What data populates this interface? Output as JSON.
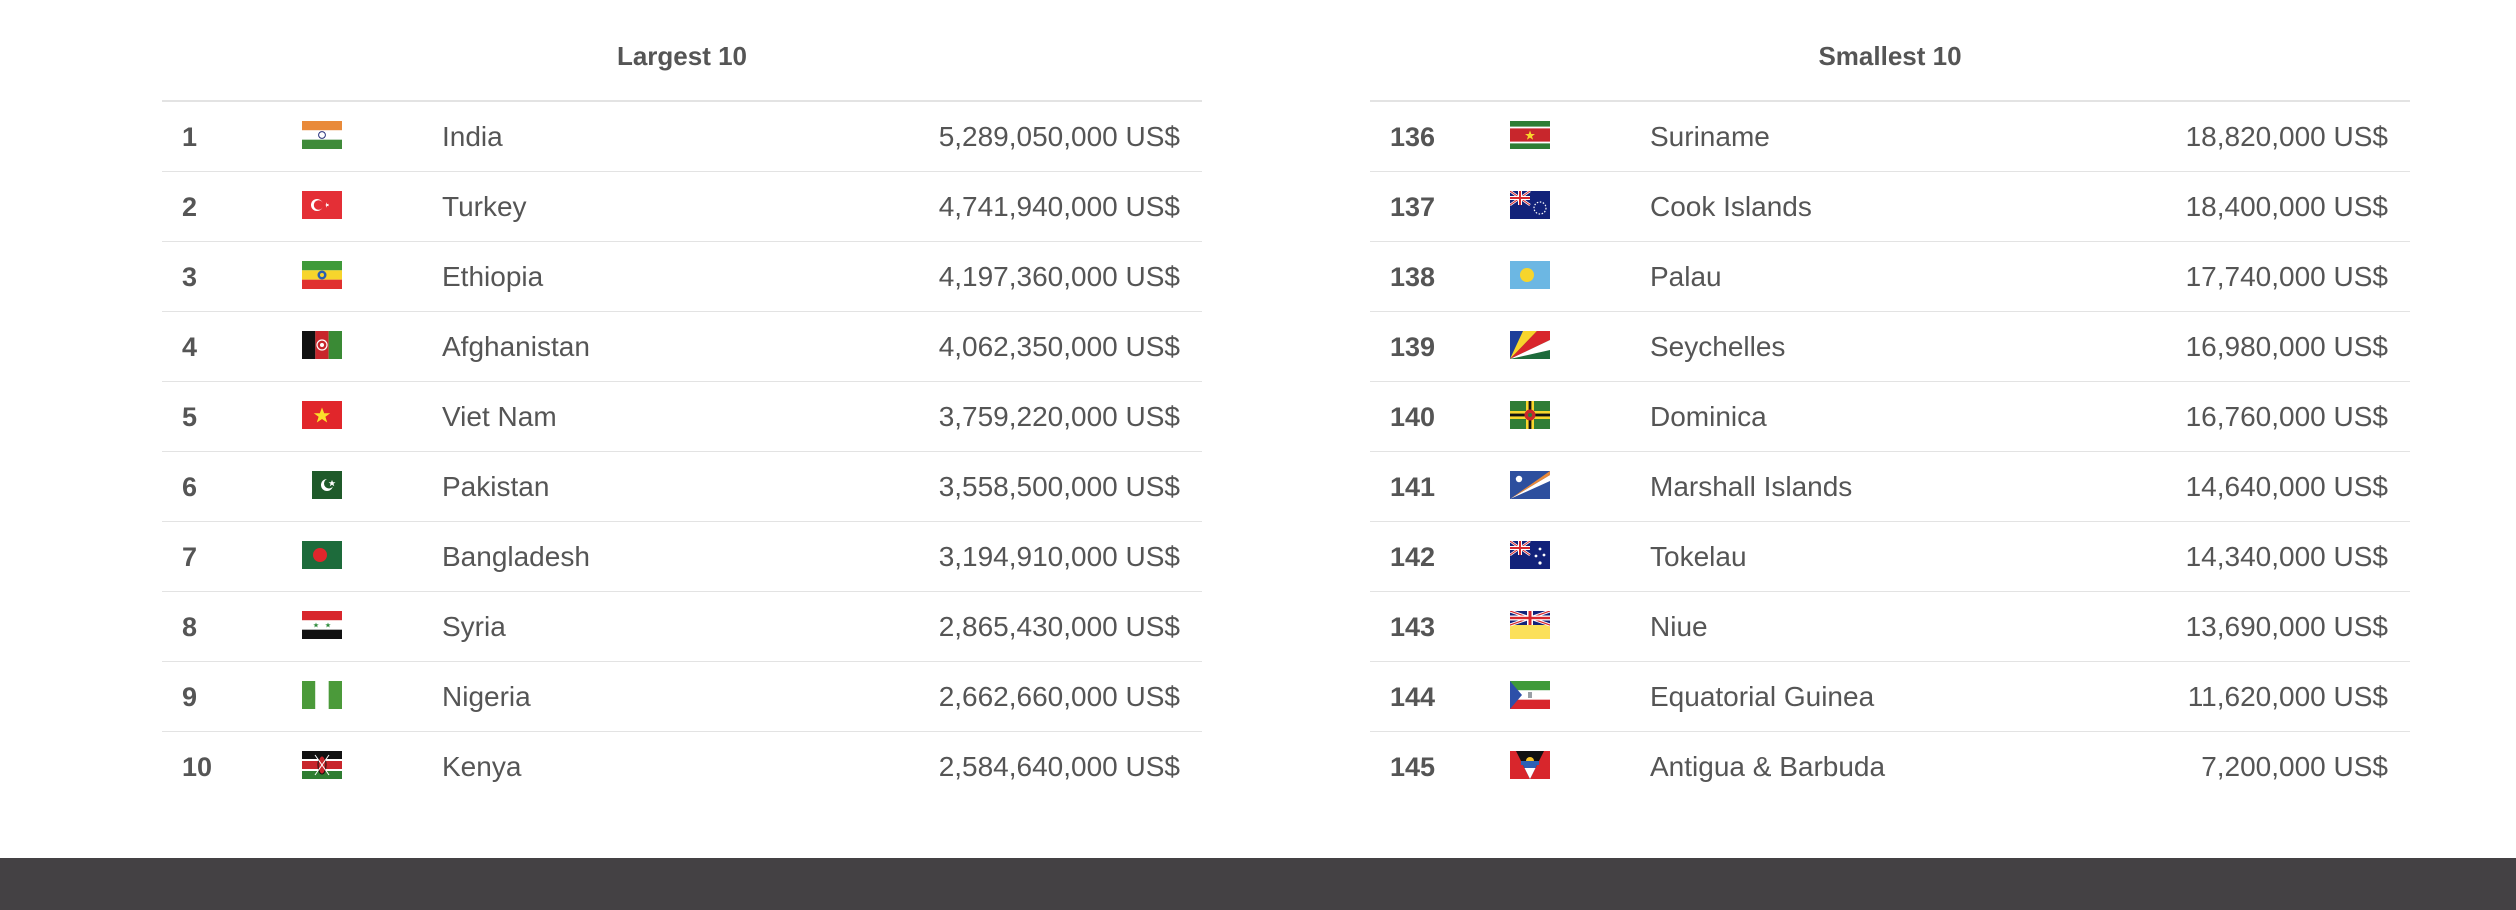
{
  "largest": {
    "title": "Largest 10",
    "rows": [
      {
        "rank": "1",
        "country": "India",
        "value": "5,289,050,000 US$",
        "flag": "india-flag-icon"
      },
      {
        "rank": "2",
        "country": "Turkey",
        "value": "4,741,940,000 US$",
        "flag": "turkey-flag-icon"
      },
      {
        "rank": "3",
        "country": "Ethiopia",
        "value": "4,197,360,000 US$",
        "flag": "ethiopia-flag-icon"
      },
      {
        "rank": "4",
        "country": "Afghanistan",
        "value": "4,062,350,000 US$",
        "flag": "afghanistan-flag-icon"
      },
      {
        "rank": "5",
        "country": "Viet Nam",
        "value": "3,759,220,000 US$",
        "flag": "vietnam-flag-icon"
      },
      {
        "rank": "6",
        "country": "Pakistan",
        "value": "3,558,500,000 US$",
        "flag": "pakistan-flag-icon"
      },
      {
        "rank": "7",
        "country": "Bangladesh",
        "value": "3,194,910,000 US$",
        "flag": "bangladesh-flag-icon"
      },
      {
        "rank": "8",
        "country": "Syria",
        "value": "2,865,430,000 US$",
        "flag": "syria-flag-icon"
      },
      {
        "rank": "9",
        "country": "Nigeria",
        "value": "2,662,660,000 US$",
        "flag": "nigeria-flag-icon"
      },
      {
        "rank": "10",
        "country": "Kenya",
        "value": "2,584,640,000 US$",
        "flag": "kenya-flag-icon"
      }
    ]
  },
  "smallest": {
    "title": "Smallest 10",
    "rows": [
      {
        "rank": "136",
        "country": "Suriname",
        "value": "18,820,000 US$",
        "flag": "suriname-flag-icon"
      },
      {
        "rank": "137",
        "country": "Cook Islands",
        "value": "18,400,000 US$",
        "flag": "cook-islands-flag-icon"
      },
      {
        "rank": "138",
        "country": "Palau",
        "value": "17,740,000 US$",
        "flag": "palau-flag-icon"
      },
      {
        "rank": "139",
        "country": "Seychelles",
        "value": "16,980,000 US$",
        "flag": "seychelles-flag-icon"
      },
      {
        "rank": "140",
        "country": "Dominica",
        "value": "16,760,000 US$",
        "flag": "dominica-flag-icon"
      },
      {
        "rank": "141",
        "country": "Marshall Islands",
        "value": "14,640,000 US$",
        "flag": "marshall-islands-flag-icon"
      },
      {
        "rank": "142",
        "country": "Tokelau",
        "value": "14,340,000 US$",
        "flag": "tokelau-flag-icon"
      },
      {
        "rank": "143",
        "country": "Niue",
        "value": "13,690,000 US$",
        "flag": "niue-flag-icon"
      },
      {
        "rank": "144",
        "country": "Equatorial Guinea",
        "value": "11,620,000 US$",
        "flag": "equatorial-guinea-flag-icon"
      },
      {
        "rank": "145",
        "country": "Antigua & Barbuda",
        "value": "7,200,000 US$",
        "flag": "antigua-barbuda-flag-icon"
      }
    ]
  },
  "colors": {
    "text": "#555555",
    "divider": "#e3e3e3",
    "footer": "#444144"
  }
}
